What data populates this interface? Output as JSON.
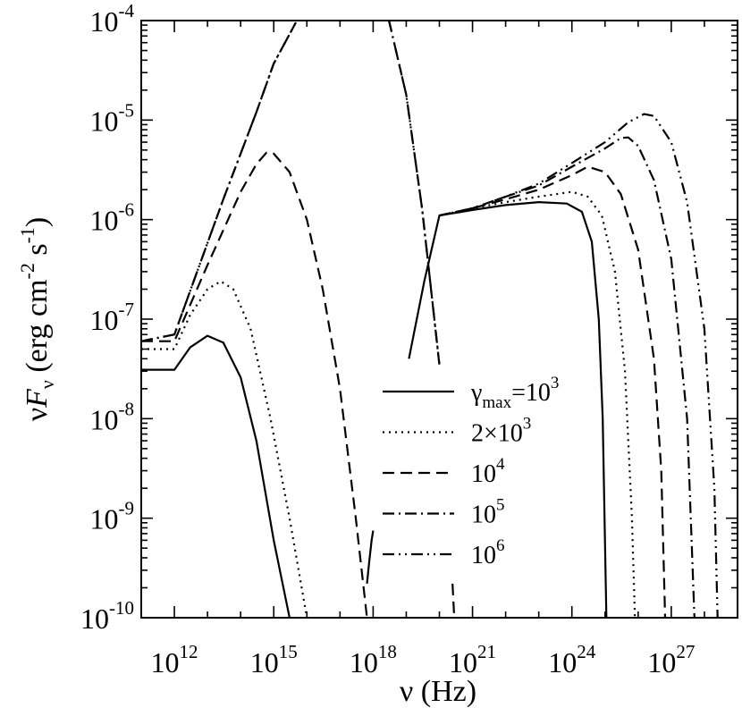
{
  "chart_data": {
    "type": "line",
    "title": "",
    "xlabel": "ν (Hz)",
    "ylabel": "νF_ν (erg cm^-2 s^-1)",
    "x_scale": "log",
    "y_scale": "log",
    "xlim": [
      100000000000.0,
      1e+29
    ],
    "ylim": [
      1e-10,
      0.0001
    ],
    "grid": false,
    "legend_position": "center-right",
    "x_tick_labels": [
      {
        "base": "10",
        "exp": "12",
        "value": 1000000000000.0
      },
      {
        "base": "10",
        "exp": "15",
        "value": 1000000000000000.0
      },
      {
        "base": "10",
        "exp": "18",
        "value": 1e+18
      },
      {
        "base": "10",
        "exp": "21",
        "value": 1e+21
      },
      {
        "base": "10",
        "exp": "24",
        "value": 1e+24
      },
      {
        "base": "10",
        "exp": "27",
        "value": 1e+27
      }
    ],
    "y_tick_labels": [
      {
        "base": "10",
        "exp": "-10",
        "value": 1e-10
      },
      {
        "base": "10",
        "exp": "-9",
        "value": 1e-09
      },
      {
        "base": "10",
        "exp": "-8",
        "value": 1e-08
      },
      {
        "base": "10",
        "exp": "-7",
        "value": 1e-07
      },
      {
        "base": "10",
        "exp": "-6",
        "value": 1e-06
      },
      {
        "base": "10",
        "exp": "-5",
        "value": 1e-05
      },
      {
        "base": "10",
        "exp": "-4",
        "value": 0.0001
      }
    ],
    "series": [
      {
        "name": "γ_max=10^3",
        "legend_label": {
          "prefix": "γ",
          "sub": "max",
          "mid": "=10",
          "sup": "3"
        },
        "style": "solid",
        "segments": [
          [
            [
              100000000000.0,
              3.1e-08
            ],
            [
              1000000000000.0,
              3.1e-08
            ],
            [
              3000000000000.0,
              5.2e-08
            ],
            [
              10000000000000.0,
              6.8e-08
            ],
            [
              30000000000000.0,
              5.8e-08
            ],
            [
              100000000000000.0,
              2.6e-08
            ],
            [
              300000000000000.0,
              6e-09
            ],
            [
              1000000000000000.0,
              6e-10
            ],
            [
              3000000000000000.0,
              1e-10
            ]
          ],
          [
            [
              1.2e+19,
              4e-08
            ],
            [
              3.5e+19,
              2.4e-07
            ],
            [
              1e+20,
              1.1e-06
            ],
            [
              1e+21,
              1.25e-06
            ],
            [
              1e+22,
              1.4e-06
            ],
            [
              1e+23,
              1.5e-06
            ],
            [
              7e+23,
              1.45e-06
            ],
            [
              2e+24,
              1.2e-06
            ],
            [
              4e+24,
              6e-07
            ],
            [
              6.5e+24,
              1e-07
            ],
            [
              8.5e+24,
              1e-08
            ],
            [
              1.1e+25,
              1e-10
            ]
          ]
        ]
      },
      {
        "name": "2×10^3",
        "legend_label": {
          "prefix": "2×10",
          "sup": "3"
        },
        "style": "dotted",
        "segments": [
          [
            [
              100000000000.0,
              5e-08
            ],
            [
              1000000000000.0,
              5e-08
            ],
            [
              3000000000000.0,
              1.1e-07
            ],
            [
              10000000000000.0,
              2e-07
            ],
            [
              25000000000000.0,
              2.4e-07
            ],
            [
              60000000000000.0,
              2e-07
            ],
            [
              200000000000000.0,
              8e-08
            ],
            [
              800000000000000.0,
              1e-08
            ],
            [
              3000000000000000.0,
              1e-09
            ],
            [
              1e+16,
              1e-10
            ]
          ],
          [
            [
              1e+20,
              1.1e-06
            ],
            [
              1e+21,
              1.3e-06
            ],
            [
              1e+22,
              1.5e-06
            ],
            [
              1e+23,
              1.7e-06
            ],
            [
              1e+24,
              1.9e-06
            ],
            [
              3e+24,
              1.7e-06
            ],
            [
              8e+24,
              1.1e-06
            ],
            [
              2e+25,
              3e-07
            ],
            [
              4e+25,
              3e-08
            ],
            [
              6.5e+25,
              1e-09
            ],
            [
              8e+25,
              1e-10
            ]
          ]
        ]
      },
      {
        "name": "10^4",
        "legend_label": {
          "prefix": "10",
          "sup": "4"
        },
        "style": "dashed",
        "segments": [
          [
            [
              100000000000.0,
              6e-08
            ],
            [
              1000000000000.0,
              6e-08
            ],
            [
              10000000000000.0,
              3.5e-07
            ],
            [
              100000000000000.0,
              1.9e-06
            ],
            [
              300000000000000.0,
              3.6e-06
            ],
            [
              600000000000000.0,
              4.7e-06
            ],
            [
              1000000000000000.0,
              4.6e-06
            ],
            [
              3000000000000000.0,
              3e-06
            ],
            [
              1e+16,
              1e-06
            ],
            [
              3e+16,
              2e-07
            ],
            [
              1e+17,
              2e-08
            ],
            [
              3e+17,
              1e-09
            ],
            [
              6.5e+17,
              1e-10
            ]
          ],
          [
            [
              1e+20,
              1.1e-06
            ],
            [
              1e+21,
              1.3e-06
            ],
            [
              1e+22,
              1.6e-06
            ],
            [
              1e+23,
              2e-06
            ],
            [
              1e+24,
              2.8e-06
            ],
            [
              3e+24,
              3.4e-06
            ],
            [
              1e+25,
              3e-06
            ],
            [
              3e+25,
              1.8e-06
            ],
            [
              1e+26,
              5e-07
            ],
            [
              3e+26,
              4e-08
            ],
            [
              5e+26,
              3e-09
            ],
            [
              6.5e+26,
              1e-10
            ]
          ]
        ]
      },
      {
        "name": "10^5",
        "legend_label": {
          "prefix": "10",
          "sup": "5"
        },
        "style": "dashdot",
        "segments": [
          [
            [
              100000000000.0,
              6e-08
            ],
            [
              1000000000000.0,
              7e-08
            ],
            [
              30000000000000.0,
              1.6e-06
            ],
            [
              300000000000000.0,
              1.2e-05
            ],
            [
              1000000000000000.0,
              3.7e-05
            ],
            [
              5000000000000000.0,
              0.0001
            ]
          ],
          [
            [
              3e+18,
              0.0001
            ],
            [
              1e+19,
              1.8e-05
            ],
            [
              3e+19,
              1.3e-06
            ],
            [
              1e+20,
              3.5e-08
            ]
          ],
          [
            [
              1e+20,
              1.1e-06
            ],
            [
              1e+21,
              1.3e-06
            ],
            [
              1e+22,
              1.7e-06
            ],
            [
              1e+23,
              2.2e-06
            ],
            [
              1e+24,
              3.4e-06
            ],
            [
              1e+25,
              5.2e-06
            ],
            [
              3e+25,
              6.6e-06
            ],
            [
              5e+25,
              6.7e-06
            ],
            [
              1e+26,
              5.5e-06
            ],
            [
              3e+26,
              2.5e-06
            ],
            [
              1e+27,
              4e-07
            ],
            [
              3e+27,
              1e-08
            ],
            [
              5e+27,
              1e-10
            ]
          ]
        ]
      },
      {
        "name": "10^6",
        "legend_label": {
          "prefix": "10",
          "sup": "6"
        },
        "style": "dashdotdot",
        "segments": [
          [
            [
              100000000000.0,
              6e-08
            ],
            [
              1000000000000.0,
              7e-08
            ],
            [
              30000000000000.0,
              1.6e-06
            ],
            [
              300000000000000.0,
              1.2e-05
            ],
            [
              1000000000000000.0,
              3.7e-05
            ],
            [
              5000000000000000.0,
              0.0001
            ]
          ],
          [
            [
              3e+18,
              0.0001
            ],
            [
              1e+19,
              1.8e-05
            ],
            [
              3e+19,
              1.3e-06
            ],
            [
              1e+20,
              3.5e-08
            ]
          ],
          [
            [
              1e+20,
              1.1e-06
            ],
            [
              1e+21,
              1.3e-06
            ],
            [
              1e+22,
              1.7e-06
            ],
            [
              1e+23,
              2.3e-06
            ],
            [
              1e+24,
              3.7e-06
            ],
            [
              1e+25,
              6e-06
            ],
            [
              5e+25,
              9.5e-06
            ],
            [
              1.5e+26,
              1.15e-05
            ],
            [
              3e+26,
              1.1e-05
            ],
            [
              1e+27,
              6e-06
            ],
            [
              3e+27,
              1.5e-06
            ],
            [
              1e+28,
              8e-08
            ],
            [
              2e+28,
              2e-09
            ],
            [
              2.5e+28,
              1e-10
            ]
          ]
        ]
      },
      {
        "name": "",
        "style": "solid",
        "segments": [
          [
            [
              6.5e+17,
              2.2e-10
            ],
            [
              7.5e+17,
              3.5e-10
            ],
            [
              9e+17,
              6e-10
            ],
            [
              1e+18,
              7.5e-10
            ]
          ]
        ]
      },
      {
        "name": "",
        "style": "dashed",
        "segments": [
          [
            [
              2.5e+20,
              2.2e-10
            ],
            [
              2.8e+20,
              1e-10
            ]
          ]
        ]
      }
    ]
  }
}
